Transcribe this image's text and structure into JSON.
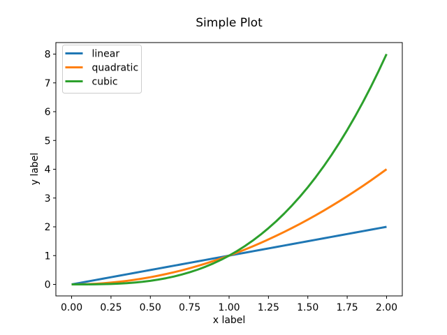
{
  "figure": {
    "background": "#ffffff",
    "frame_color": "#000000",
    "tick_color": "#000000",
    "text_color": "#000000"
  },
  "chart_data": {
    "type": "line",
    "title": "Simple Plot",
    "xlabel": "x label",
    "ylabel": "y label",
    "xlim": [
      -0.1,
      2.1
    ],
    "ylim": [
      -0.4,
      8.4
    ],
    "grid": false,
    "line_width": 3,
    "xticks": [
      {
        "value": 0.0,
        "label": "0.00"
      },
      {
        "value": 0.25,
        "label": "0.25"
      },
      {
        "value": 0.5,
        "label": "0.50"
      },
      {
        "value": 0.75,
        "label": "0.75"
      },
      {
        "value": 1.0,
        "label": "1.00"
      },
      {
        "value": 1.25,
        "label": "1.25"
      },
      {
        "value": 1.5,
        "label": "1.50"
      },
      {
        "value": 1.75,
        "label": "1.75"
      },
      {
        "value": 2.0,
        "label": "2.00"
      }
    ],
    "yticks": [
      {
        "value": 0,
        "label": "0"
      },
      {
        "value": 1,
        "label": "1"
      },
      {
        "value": 2,
        "label": "2"
      },
      {
        "value": 3,
        "label": "3"
      },
      {
        "value": 4,
        "label": "4"
      },
      {
        "value": 5,
        "label": "5"
      },
      {
        "value": 6,
        "label": "6"
      },
      {
        "value": 7,
        "label": "7"
      },
      {
        "value": 8,
        "label": "8"
      }
    ],
    "legend": {
      "position": "upper left",
      "border_color": "#cccccc",
      "background": "#ffffff"
    },
    "x": [
      0,
      0.05,
      0.1,
      0.15,
      0.2,
      0.25,
      0.3,
      0.35,
      0.4,
      0.45,
      0.5,
      0.55,
      0.6,
      0.65,
      0.7,
      0.75,
      0.8,
      0.85,
      0.9,
      0.95,
      1,
      1.05,
      1.1,
      1.15,
      1.2,
      1.25,
      1.3,
      1.35,
      1.4,
      1.45,
      1.5,
      1.55,
      1.6,
      1.65,
      1.7,
      1.75,
      1.8,
      1.85,
      1.9,
      1.95,
      2
    ],
    "series": [
      {
        "name": "linear",
        "color": "#1f77b4",
        "values": [
          0,
          0.05,
          0.1,
          0.15,
          0.2,
          0.25,
          0.3,
          0.35,
          0.4,
          0.45,
          0.5,
          0.55,
          0.6,
          0.65,
          0.7,
          0.75,
          0.8,
          0.85,
          0.9,
          0.95,
          1,
          1.05,
          1.1,
          1.15,
          1.2,
          1.25,
          1.3,
          1.35,
          1.4,
          1.45,
          1.5,
          1.55,
          1.6,
          1.65,
          1.7,
          1.75,
          1.8,
          1.85,
          1.9,
          1.95,
          2
        ]
      },
      {
        "name": "quadratic",
        "color": "#ff7f0e",
        "values": [
          0,
          0.0025,
          0.01,
          0.0225,
          0.04,
          0.0625,
          0.09,
          0.1225,
          0.16,
          0.2025,
          0.25,
          0.3025,
          0.36,
          0.4225,
          0.49,
          0.5625,
          0.64,
          0.7225,
          0.81,
          0.9025,
          1,
          1.1025,
          1.21,
          1.3225,
          1.44,
          1.5625,
          1.69,
          1.8225,
          1.96,
          2.1025,
          2.25,
          2.4025,
          2.56,
          2.7225,
          2.89,
          3.0625,
          3.24,
          3.4225,
          3.61,
          3.8025,
          4
        ]
      },
      {
        "name": "cubic",
        "color": "#2ca02c",
        "values": [
          0,
          0.0001,
          0.001,
          0.0034,
          0.008,
          0.0156,
          0.027,
          0.0429,
          0.064,
          0.0911,
          0.125,
          0.1664,
          0.216,
          0.2746,
          0.343,
          0.4219,
          0.512,
          0.6141,
          0.729,
          0.8574,
          1,
          1.1576,
          1.331,
          1.5209,
          1.728,
          1.9531,
          2.197,
          2.4604,
          2.744,
          3.0486,
          3.375,
          3.7239,
          4.096,
          4.4921,
          4.913,
          5.3594,
          5.832,
          6.3316,
          6.859,
          7.4149,
          8
        ]
      }
    ]
  }
}
